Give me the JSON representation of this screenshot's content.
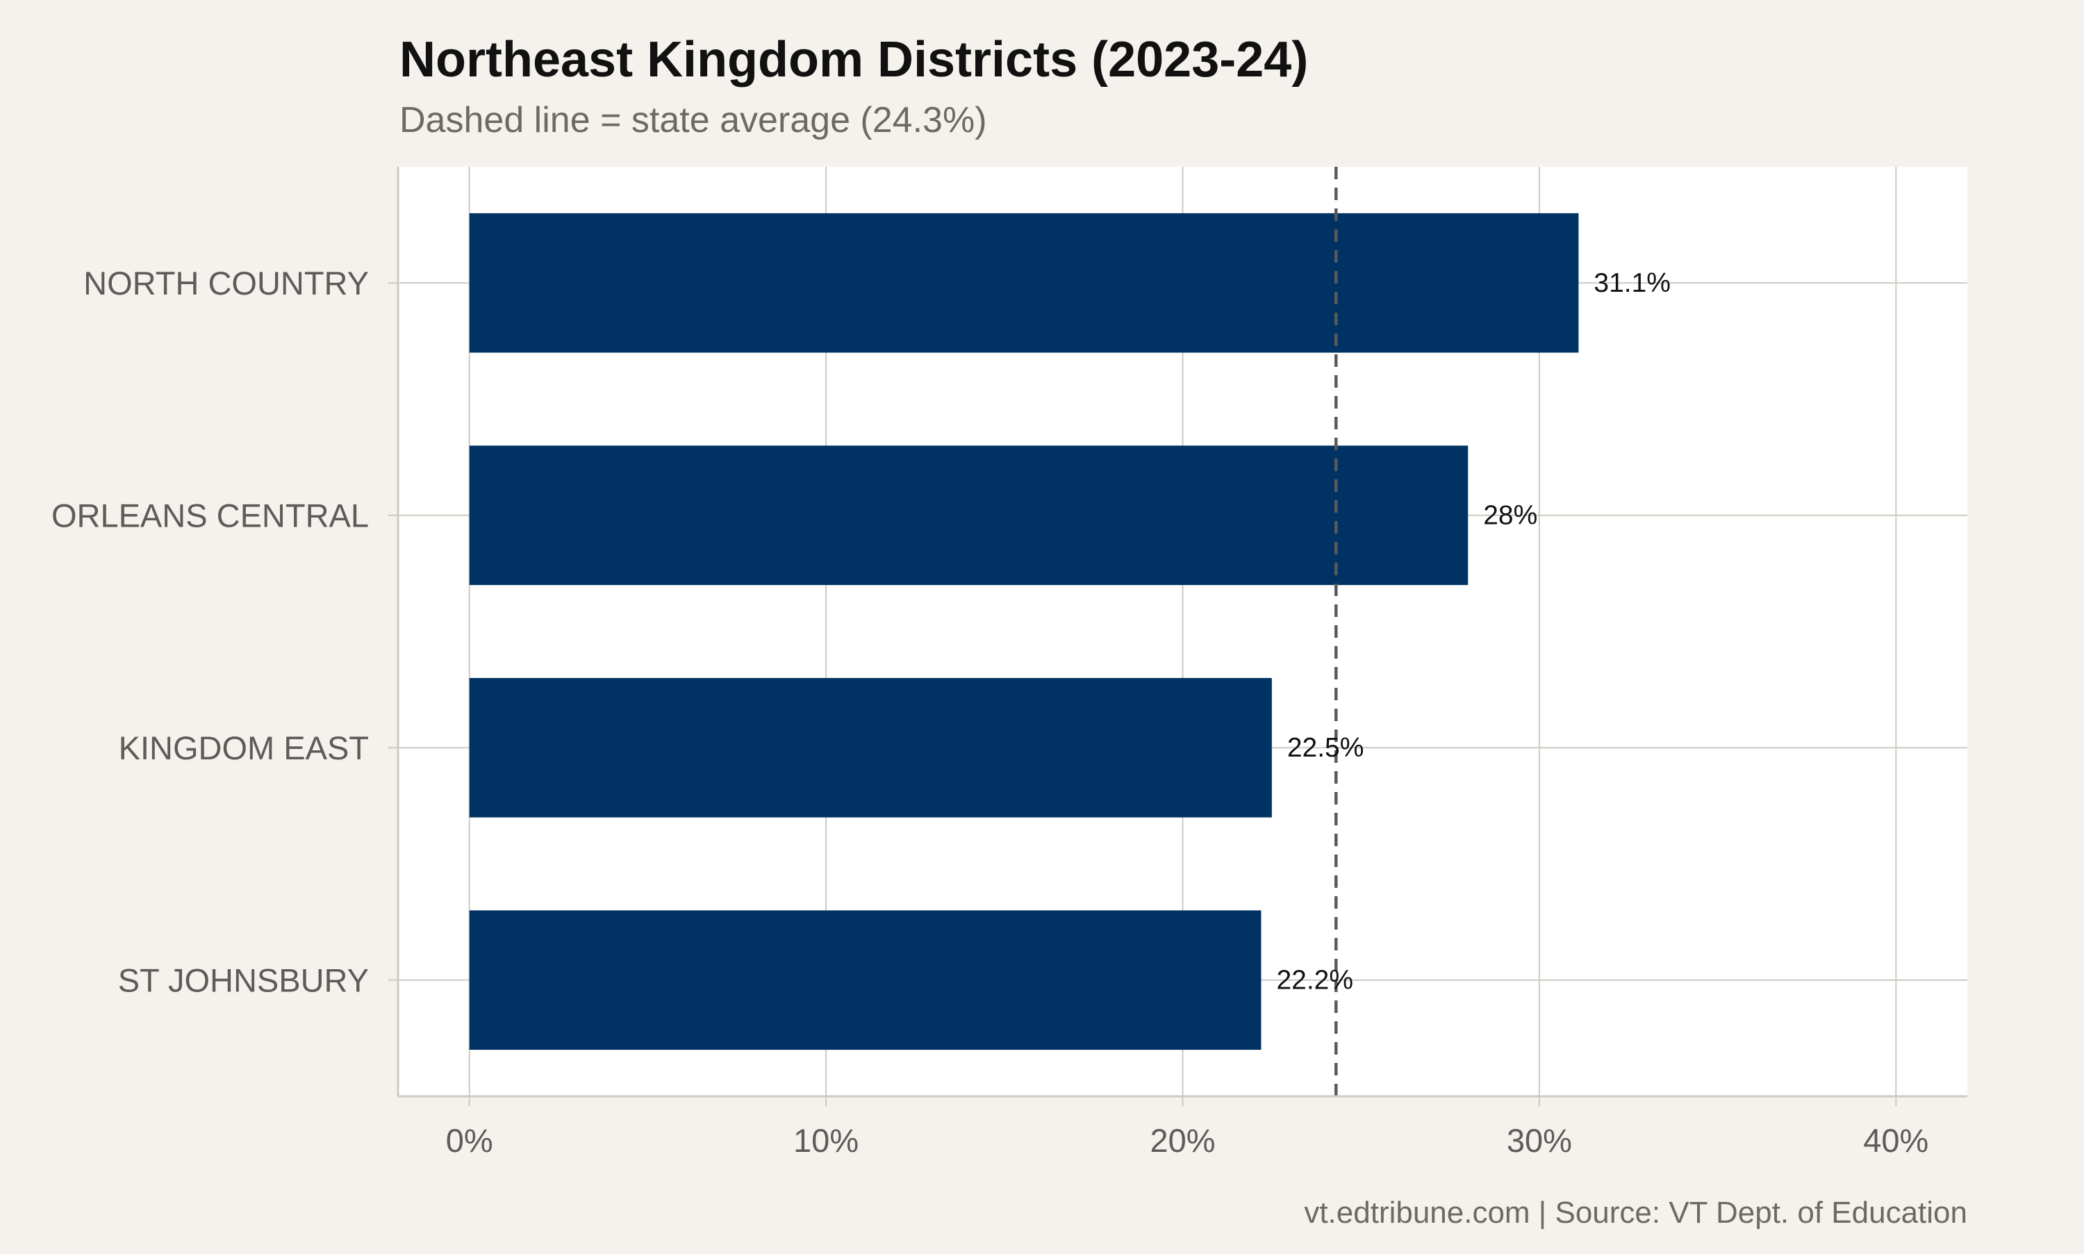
{
  "chart_data": {
    "type": "bar",
    "orientation": "horizontal",
    "title": "Northeast Kingdom Districts (2023-24)",
    "subtitle": "Dashed line = state average (24.3%)",
    "caption": "vt.edtribune.com | Source: VT Dept. of Education",
    "categories": [
      "NORTH COUNTRY",
      "ORLEANS CENTRAL",
      "KINGDOM EAST",
      "ST JOHNSBURY"
    ],
    "values": [
      31.1,
      28.0,
      22.5,
      22.2
    ],
    "value_labels": [
      "31.1%",
      "28%",
      "22.5%",
      "22.2%"
    ],
    "reference_line": {
      "value": 24.3,
      "style": "dashed"
    },
    "xlim": [
      -2,
      42
    ],
    "x_ticks": [
      0,
      10,
      20,
      30,
      40
    ],
    "x_tick_labels": [
      "0%",
      "10%",
      "20%",
      "30%",
      "40%"
    ],
    "grid": true,
    "legend": "none",
    "colors": {
      "bar": "#003363",
      "background": "#f5f2ed",
      "panel": "#ffffff",
      "grid": "#cdcac3",
      "reference_line": "#5a5a5a"
    }
  }
}
